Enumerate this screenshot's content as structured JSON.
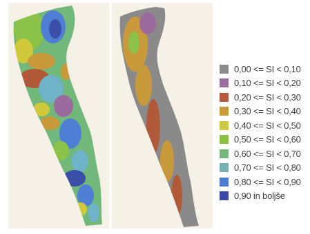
{
  "maps": [
    {
      "name": "map-colored",
      "description_colors": [
        "#3b4ea8",
        "#4f7fd4",
        "#6fb3c9",
        "#71b87a",
        "#8bc34a",
        "#d1c93c",
        "#c99a3c",
        "#b15a3a",
        "#9c6b9e",
        "#8b8b8b"
      ]
    },
    {
      "name": "map-classified",
      "description_colors": [
        "#8a8a8a",
        "#9c6b9e",
        "#c99a3c",
        "#8bc34a",
        "#b15a3a"
      ]
    }
  ],
  "legend": {
    "items": [
      {
        "label": "0,00 <= SI < 0,10",
        "color": "#8c8c8c"
      },
      {
        "label": "0,10 <= SI < 0,20",
        "color": "#9b6f9f"
      },
      {
        "label": "0,20 <= SI < 0,30",
        "color": "#b35b3e"
      },
      {
        "label": "0,30 <= SI < 0,40",
        "color": "#c99a3e"
      },
      {
        "label": "0,40 <= SI < 0,50",
        "color": "#cfc846"
      },
      {
        "label": "0,50 <= SI < 0,60",
        "color": "#8cbf45"
      },
      {
        "label": "0,60 <= SI < 0,70",
        "color": "#76b77b"
      },
      {
        "label": "0,70 <= SI < 0,80",
        "color": "#74b3b0"
      },
      {
        "label": "0,80 <= SI < 0,90",
        "color": "#4b7ed0"
      },
      {
        "label": "0,90 in boljše",
        "color": "#3b4aa5"
      }
    ]
  }
}
